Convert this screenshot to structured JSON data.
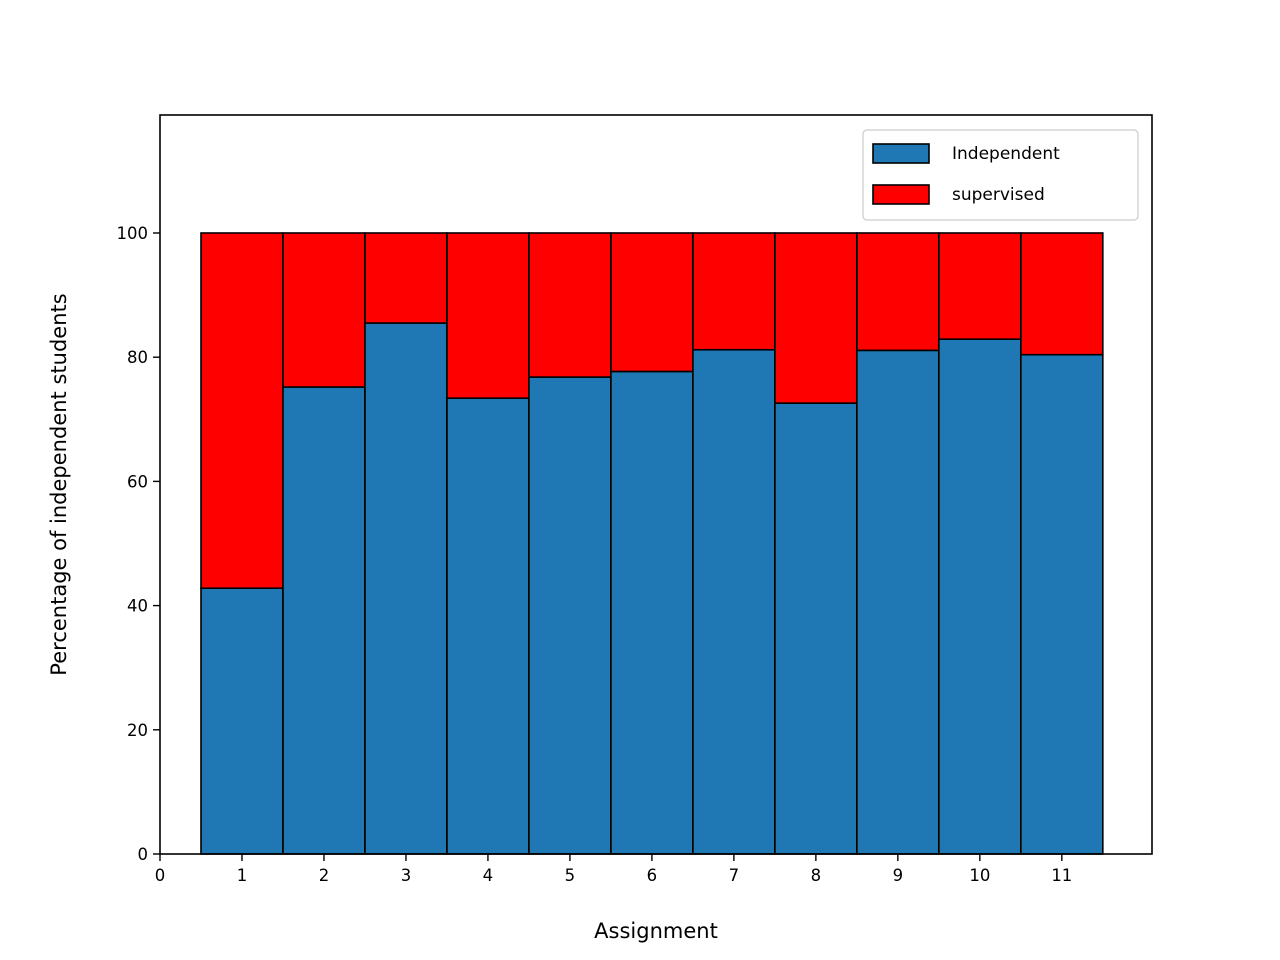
{
  "chart_data": {
    "type": "bar",
    "stacked": true,
    "x": [
      1,
      2,
      3,
      4,
      5,
      6,
      7,
      8,
      9,
      10,
      11
    ],
    "series": [
      {
        "name": "Independent",
        "color": "#1f77b4",
        "values": [
          42.8,
          75.2,
          85.5,
          73.4,
          76.8,
          77.7,
          81.2,
          72.6,
          81.1,
          82.9,
          80.4
        ]
      },
      {
        "name": "supervised",
        "color": "#ff0000",
        "values": [
          57.2,
          24.8,
          14.5,
          26.6,
          23.2,
          22.3,
          18.8,
          27.4,
          18.9,
          17.1,
          19.6
        ]
      }
    ],
    "xlabel": "Assignment",
    "ylabel": "Percentage of independent students",
    "xticks": [
      0,
      1,
      2,
      3,
      4,
      5,
      6,
      7,
      8,
      9,
      10,
      11
    ],
    "yticks": [
      0,
      20,
      40,
      60,
      80,
      100
    ],
    "xlim": [
      0,
      12.1
    ],
    "ylim": [
      0,
      119
    ],
    "bar_width": 1,
    "edge_color": "#000000",
    "grid": false,
    "legend_position": "upper right"
  }
}
